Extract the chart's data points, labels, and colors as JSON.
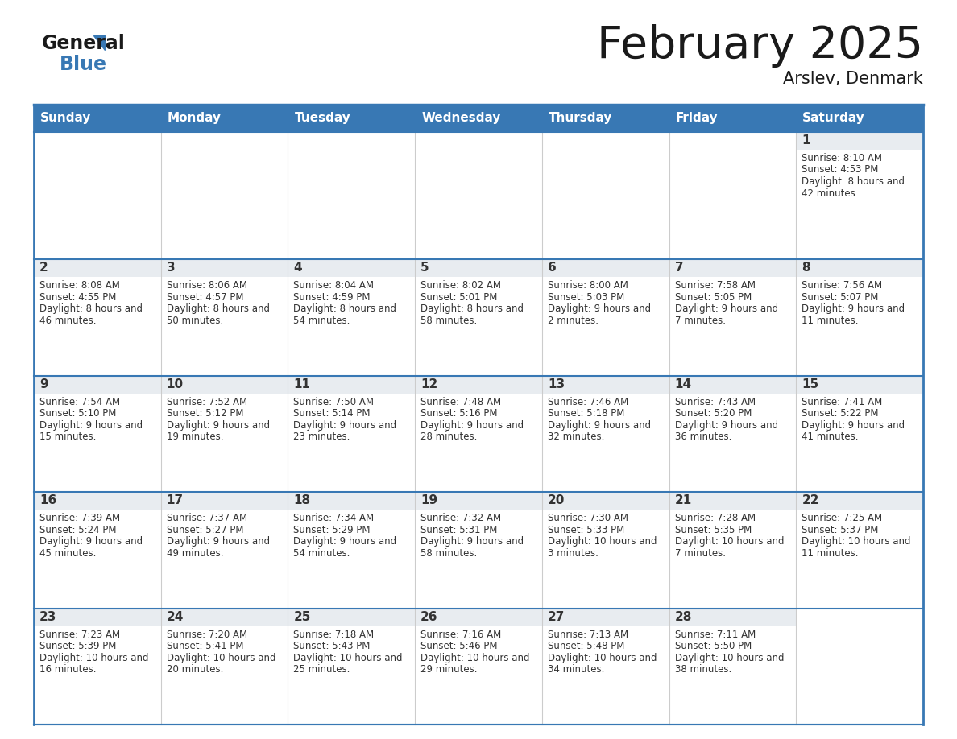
{
  "title": "February 2025",
  "subtitle": "Arslev, Denmark",
  "header_color": "#3878b4",
  "header_text_color": "#ffffff",
  "cell_bg_daynum": "#e8edf2",
  "cell_bg_content": "#ffffff",
  "border_color": "#3878b4",
  "text_color": "#333333",
  "day_num_color": "#3878b4",
  "day_headers": [
    "Sunday",
    "Monday",
    "Tuesday",
    "Wednesday",
    "Thursday",
    "Friday",
    "Saturday"
  ],
  "calendar_data": [
    [
      null,
      null,
      null,
      null,
      null,
      null,
      {
        "day": 1,
        "sunrise": "8:10 AM",
        "sunset": "4:53 PM",
        "daylight": "8 hours and 42 minutes"
      }
    ],
    [
      {
        "day": 2,
        "sunrise": "8:08 AM",
        "sunset": "4:55 PM",
        "daylight": "8 hours and 46 minutes"
      },
      {
        "day": 3,
        "sunrise": "8:06 AM",
        "sunset": "4:57 PM",
        "daylight": "8 hours and 50 minutes"
      },
      {
        "day": 4,
        "sunrise": "8:04 AM",
        "sunset": "4:59 PM",
        "daylight": "8 hours and 54 minutes"
      },
      {
        "day": 5,
        "sunrise": "8:02 AM",
        "sunset": "5:01 PM",
        "daylight": "8 hours and 58 minutes"
      },
      {
        "day": 6,
        "sunrise": "8:00 AM",
        "sunset": "5:03 PM",
        "daylight": "9 hours and 2 minutes"
      },
      {
        "day": 7,
        "sunrise": "7:58 AM",
        "sunset": "5:05 PM",
        "daylight": "9 hours and 7 minutes"
      },
      {
        "day": 8,
        "sunrise": "7:56 AM",
        "sunset": "5:07 PM",
        "daylight": "9 hours and 11 minutes"
      }
    ],
    [
      {
        "day": 9,
        "sunrise": "7:54 AM",
        "sunset": "5:10 PM",
        "daylight": "9 hours and 15 minutes"
      },
      {
        "day": 10,
        "sunrise": "7:52 AM",
        "sunset": "5:12 PM",
        "daylight": "9 hours and 19 minutes"
      },
      {
        "day": 11,
        "sunrise": "7:50 AM",
        "sunset": "5:14 PM",
        "daylight": "9 hours and 23 minutes"
      },
      {
        "day": 12,
        "sunrise": "7:48 AM",
        "sunset": "5:16 PM",
        "daylight": "9 hours and 28 minutes"
      },
      {
        "day": 13,
        "sunrise": "7:46 AM",
        "sunset": "5:18 PM",
        "daylight": "9 hours and 32 minutes"
      },
      {
        "day": 14,
        "sunrise": "7:43 AM",
        "sunset": "5:20 PM",
        "daylight": "9 hours and 36 minutes"
      },
      {
        "day": 15,
        "sunrise": "7:41 AM",
        "sunset": "5:22 PM",
        "daylight": "9 hours and 41 minutes"
      }
    ],
    [
      {
        "day": 16,
        "sunrise": "7:39 AM",
        "sunset": "5:24 PM",
        "daylight": "9 hours and 45 minutes"
      },
      {
        "day": 17,
        "sunrise": "7:37 AM",
        "sunset": "5:27 PM",
        "daylight": "9 hours and 49 minutes"
      },
      {
        "day": 18,
        "sunrise": "7:34 AM",
        "sunset": "5:29 PM",
        "daylight": "9 hours and 54 minutes"
      },
      {
        "day": 19,
        "sunrise": "7:32 AM",
        "sunset": "5:31 PM",
        "daylight": "9 hours and 58 minutes"
      },
      {
        "day": 20,
        "sunrise": "7:30 AM",
        "sunset": "5:33 PM",
        "daylight": "10 hours and 3 minutes"
      },
      {
        "day": 21,
        "sunrise": "7:28 AM",
        "sunset": "5:35 PM",
        "daylight": "10 hours and 7 minutes"
      },
      {
        "day": 22,
        "sunrise": "7:25 AM",
        "sunset": "5:37 PM",
        "daylight": "10 hours and 11 minutes"
      }
    ],
    [
      {
        "day": 23,
        "sunrise": "7:23 AM",
        "sunset": "5:39 PM",
        "daylight": "10 hours and 16 minutes"
      },
      {
        "day": 24,
        "sunrise": "7:20 AM",
        "sunset": "5:41 PM",
        "daylight": "10 hours and 20 minutes"
      },
      {
        "day": 25,
        "sunrise": "7:18 AM",
        "sunset": "5:43 PM",
        "daylight": "10 hours and 25 minutes"
      },
      {
        "day": 26,
        "sunrise": "7:16 AM",
        "sunset": "5:46 PM",
        "daylight": "10 hours and 29 minutes"
      },
      {
        "day": 27,
        "sunrise": "7:13 AM",
        "sunset": "5:48 PM",
        "daylight": "10 hours and 34 minutes"
      },
      {
        "day": 28,
        "sunrise": "7:11 AM",
        "sunset": "5:50 PM",
        "daylight": "10 hours and 38 minutes"
      },
      null
    ]
  ]
}
